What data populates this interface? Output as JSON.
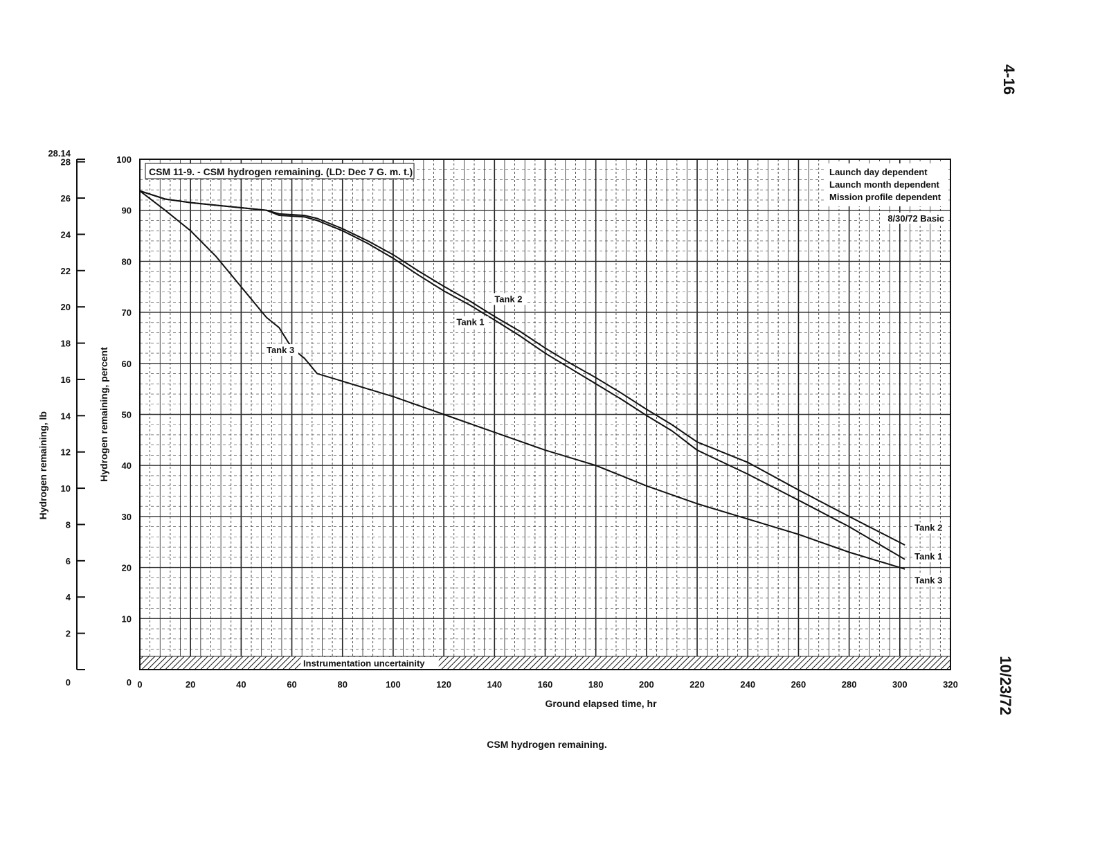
{
  "page": {
    "page_number": "4-16",
    "date": "10/23/72",
    "caption": "CSM hydrogen remaining."
  },
  "chart_data": {
    "type": "line",
    "title": "CSM 11-9. - CSM hydrogen remaining.  (LD: Dec 7 G. m. t.)",
    "xlabel": "Ground elapsed time, hr",
    "ylabel": "Hydrogen remaining, percent",
    "y2label": "Hydrogen remaining, lb",
    "xlim": [
      0,
      320
    ],
    "ylim": [
      0,
      100
    ],
    "y2lim": [
      0,
      28.14
    ],
    "xticks": [
      0,
      20,
      40,
      60,
      80,
      100,
      120,
      140,
      160,
      180,
      200,
      220,
      240,
      260,
      280,
      300,
      320
    ],
    "yticks": [
      10,
      20,
      30,
      40,
      50,
      60,
      70,
      80,
      90,
      100
    ],
    "y0label": "0",
    "y2ticks": [
      2,
      4,
      6,
      8,
      10,
      12,
      14,
      16,
      18,
      20,
      22,
      24,
      26,
      28
    ],
    "y2top_label": "28.14",
    "y20label": "0",
    "grid": true,
    "notes": [
      "Launch day dependent",
      "Launch month dependent",
      "Mission profile dependent",
      "8/30/72 Basic"
    ],
    "band": {
      "label": "Instrumentation uncertainity",
      "from": 0,
      "to": 2.6
    },
    "series": [
      {
        "name": "Tank 1",
        "x": [
          0,
          10,
          20,
          30,
          40,
          50,
          55,
          65,
          70,
          80,
          90,
          100,
          110,
          120,
          130,
          140,
          150,
          160,
          170,
          180,
          190,
          200,
          210,
          220,
          240,
          260,
          280,
          302
        ],
        "y": [
          93.8,
          92.2,
          91.5,
          91,
          90.5,
          90,
          89,
          88.7,
          88,
          86,
          83.5,
          80.6,
          77.3,
          74.2,
          71.5,
          68.5,
          65.4,
          62,
          59,
          56,
          53,
          49.8,
          46.8,
          43,
          38.3,
          33.2,
          28,
          21.6
        ]
      },
      {
        "name": "Tank 2",
        "x": [
          0,
          10,
          20,
          30,
          40,
          50,
          55,
          65,
          70,
          80,
          90,
          100,
          110,
          120,
          130,
          140,
          150,
          160,
          170,
          180,
          190,
          200,
          210,
          220,
          240,
          260,
          280,
          302
        ],
        "y": [
          93.8,
          92.2,
          91.5,
          91,
          90.5,
          90,
          89.3,
          89,
          88.4,
          86.4,
          84,
          81.3,
          78.1,
          75.1,
          72.3,
          69.2,
          66.3,
          63,
          60,
          57.2,
          54.2,
          51,
          48,
          44.6,
          40.6,
          35.2,
          30,
          24.4
        ]
      },
      {
        "name": "Tank 3",
        "x": [
          0,
          10,
          20,
          30,
          40,
          50,
          55,
          60,
          65,
          70,
          80,
          90,
          100,
          120,
          140,
          160,
          180,
          200,
          220,
          240,
          260,
          280,
          290,
          302
        ],
        "y": [
          93.8,
          90,
          86,
          81,
          75,
          69,
          67,
          63,
          61,
          58,
          56.5,
          55,
          53.5,
          50,
          46.5,
          43,
          40,
          36,
          32.5,
          29.5,
          26.5,
          23,
          21.5,
          19.7
        ]
      }
    ],
    "inline_labels": [
      {
        "series": "Tank 2",
        "x": 140,
        "y": 72
      },
      {
        "series": "Tank 1",
        "x": 125,
        "y": 67.5
      },
      {
        "series": "Tank 3",
        "x": 50,
        "y": 62
      }
    ]
  }
}
